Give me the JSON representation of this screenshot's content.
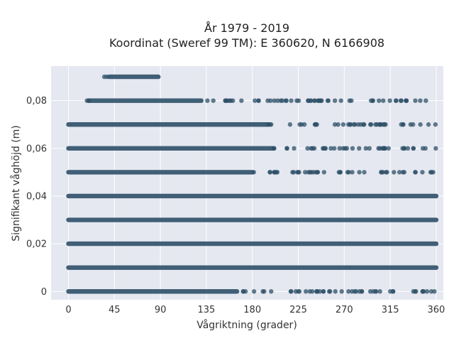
{
  "chart_data": {
    "type": "scatter",
    "title_line1": "År 1979 - 2019",
    "title_line2": "Koordinat (Sweref 99 TM): E 360620, N 6166908",
    "xlabel": "Vågriktning (grader)",
    "ylabel": "Signifikant våghöjd (m)",
    "xlim": [
      -17,
      367
    ],
    "ylim": [
      -0.0035,
      0.0945
    ],
    "xticks": [
      0,
      45,
      90,
      135,
      180,
      225,
      270,
      315,
      360
    ],
    "xtick_labels": [
      "0",
      "45",
      "90",
      "135",
      "180",
      "225",
      "270",
      "315",
      "360"
    ],
    "yticks": [
      0,
      0.02,
      0.04,
      0.06,
      0.08
    ],
    "ytick_labels": [
      "0",
      "0,02",
      "0,04",
      "0,06",
      "0,08"
    ],
    "grid": true,
    "colors": {
      "background": "#e5e8f0",
      "grid": "#ffffff",
      "marker": "#2e5068"
    },
    "bands": [
      {
        "y": 0.09,
        "dense": [
          [
            40,
            88
          ]
        ],
        "sparse": [
          [
            33,
            40
          ]
        ]
      },
      {
        "y": 0.08,
        "dense": [
          [
            20,
            130
          ]
        ],
        "sparse": [
          [
            15,
            20
          ],
          [
            130,
            165
          ],
          [
            165,
            355
          ]
        ]
      },
      {
        "y": 0.07,
        "dense": [
          [
            0,
            195
          ]
        ],
        "sparse": [
          [
            195,
            360
          ]
        ]
      },
      {
        "y": 0.06,
        "dense": [
          [
            0,
            200
          ]
        ],
        "sparse": [
          [
            200,
            360
          ]
        ]
      },
      {
        "y": 0.05,
        "dense": [
          [
            0,
            180
          ]
        ],
        "sparse": [
          [
            180,
            360
          ]
        ]
      },
      {
        "y": 0.04,
        "dense": [
          [
            0,
            360
          ]
        ],
        "sparse": []
      },
      {
        "y": 0.03,
        "dense": [
          [
            0,
            360
          ]
        ],
        "sparse": []
      },
      {
        "y": 0.02,
        "dense": [
          [
            0,
            360
          ]
        ],
        "sparse": []
      },
      {
        "y": 0.01,
        "dense": [
          [
            0,
            360
          ]
        ],
        "sparse": []
      },
      {
        "y": 0.0,
        "dense": [
          [
            0,
            165
          ]
        ],
        "sparse": [
          [
            165,
            360
          ]
        ]
      }
    ]
  }
}
